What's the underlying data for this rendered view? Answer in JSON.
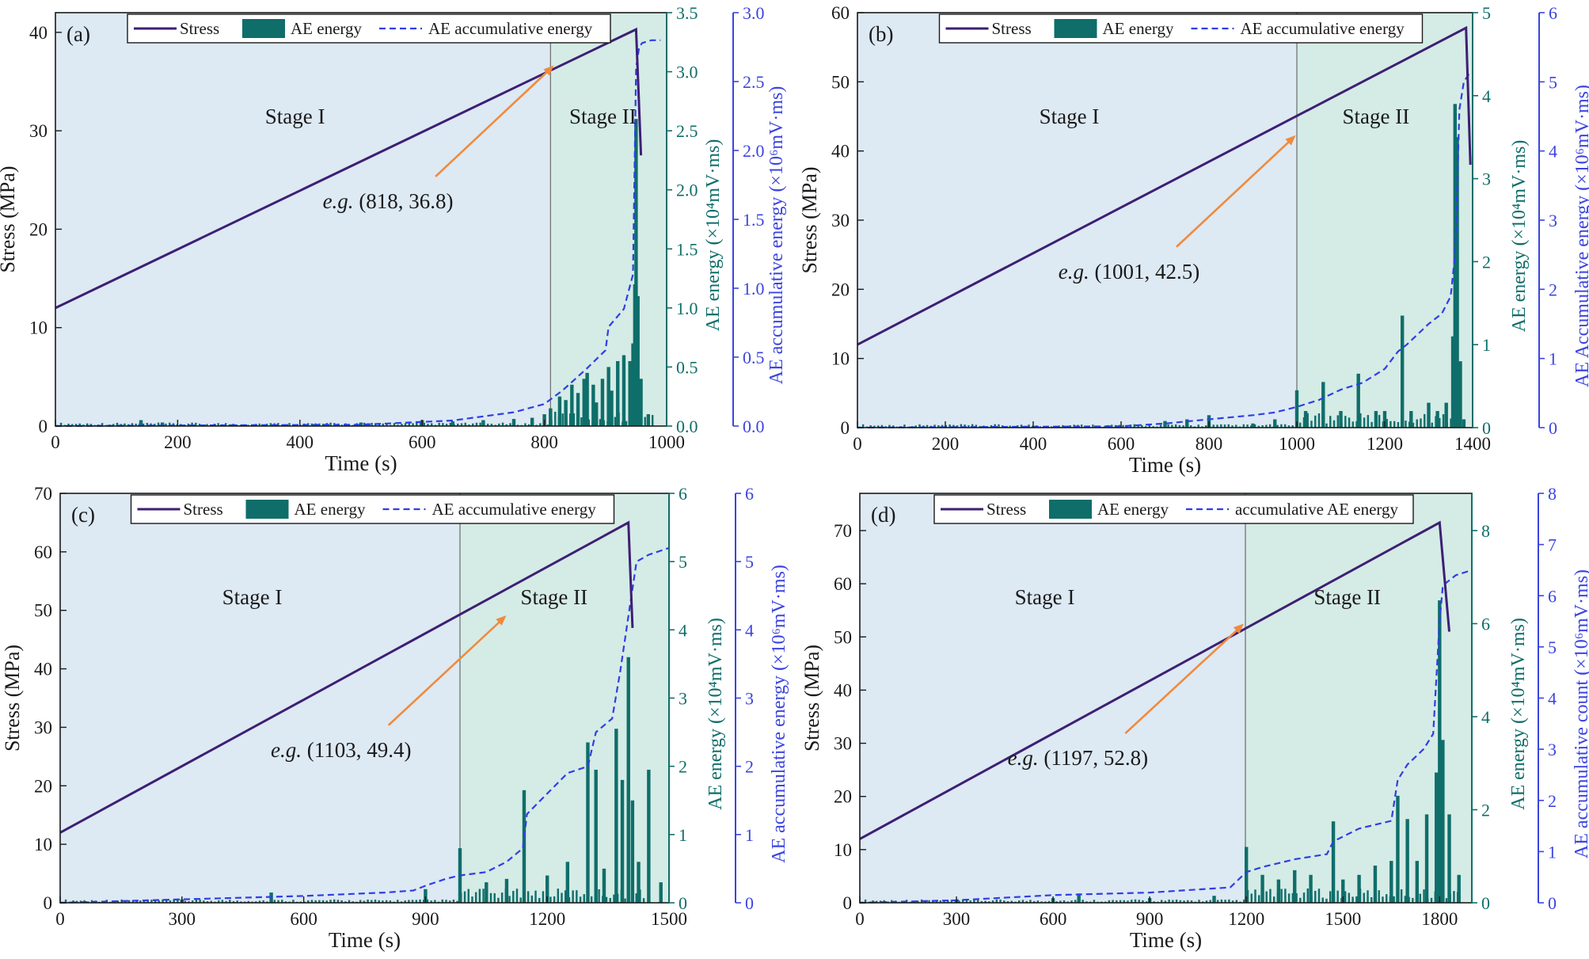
{
  "figure": {
    "colors": {
      "stress": "#3d1f73",
      "ae_energy": "#0f6e6a",
      "ae_accumulative": "#2f3ee6",
      "stage1_bg": "#dde9f3",
      "stage2_bg": "#d5ebe6",
      "annotation_arrow": "#f08a3c",
      "axis_stress": "#1a1a1a",
      "axis_energy": "#0f6e6a",
      "axis_accumulative": "#3b44e0"
    }
  },
  "chart_data": [
    {
      "type": "line",
      "panel_label": "(a)",
      "xlabel": "Time (s)",
      "ylabel_left": "Stress (MPa)",
      "ylabel_right1": "AE energy (×10⁴mV·ms)",
      "ylabel_right2": "AE accumulative energy (×10⁶mV·ms)",
      "xlim": [
        0,
        1000
      ],
      "ylim_left": [
        0,
        42
      ],
      "ylim_right1": [
        0,
        3.5
      ],
      "ylim_right2": [
        0,
        3.0
      ],
      "xticks": [
        0,
        200,
        400,
        600,
        800,
        1000
      ],
      "yticks_left": [
        0,
        10,
        20,
        30,
        40
      ],
      "yticks_right1": [
        0.0,
        0.5,
        1.0,
        1.5,
        2.0,
        2.5,
        3.0,
        3.5
      ],
      "yticks_right1_labels": [
        "0.0",
        "0.5",
        "1.0",
        "1.5",
        "2.0",
        "2.5",
        "3.0",
        "3.5"
      ],
      "yticks_right2": [
        0.0,
        0.5,
        1.0,
        1.5,
        2.0,
        2.5,
        3.0
      ],
      "yticks_right2_labels": [
        "0.0",
        "0.5",
        "1.0",
        "1.5",
        "2.0",
        "2.5",
        "3.0"
      ],
      "stage_boundary": 810,
      "stage_labels": [
        "Stage I",
        "Stage II"
      ],
      "legend": [
        "Stress",
        "AE energy",
        "AE accumulative energy"
      ],
      "stress": {
        "x": [
          0,
          950,
          958
        ],
        "y": [
          12,
          40.3,
          27.5
        ]
      },
      "annotation": {
        "italic": "e.g.",
        "text": " (818, 36.8)",
        "x": 818,
        "y": 36.8
      },
      "ae_accumulative": {
        "x": [
          0,
          500,
          650,
          750,
          800,
          830,
          870,
          900,
          905,
          930,
          945,
          950,
          955,
          960,
          975,
          990
        ],
        "y": [
          0,
          0.01,
          0.04,
          0.1,
          0.16,
          0.26,
          0.42,
          0.55,
          0.72,
          0.85,
          1.1,
          2.6,
          2.75,
          2.78,
          2.8,
          2.8
        ]
      },
      "ae_energy": {
        "x": [
          140,
          175,
          500,
          600,
          650,
          700,
          750,
          780,
          800,
          810,
          825,
          835,
          845,
          855,
          865,
          870,
          880,
          885,
          895,
          905,
          910,
          920,
          930,
          940,
          945,
          948,
          950,
          953,
          958,
          970
        ],
        "y": [
          0.05,
          0.03,
          0.03,
          0.05,
          0.04,
          0.05,
          0.06,
          0.07,
          0.1,
          0.15,
          0.25,
          0.22,
          0.35,
          0.28,
          0.4,
          0.45,
          0.35,
          0.2,
          0.4,
          0.5,
          0.3,
          0.55,
          0.6,
          0.55,
          0.7,
          1.2,
          2.6,
          1.1,
          0.4,
          0.1
        ]
      }
    },
    {
      "type": "line",
      "panel_label": "(b)",
      "xlabel": "Time (s)",
      "ylabel_left": "Stress (MPa)",
      "ylabel_right1": "AE energy (×10⁴mV·ms)",
      "ylabel_right2": "AE Accumulative energy (×10⁶mV·ms)",
      "xlim": [
        0,
        1400
      ],
      "ylim_left": [
        0,
        60
      ],
      "ylim_right1": [
        0,
        5
      ],
      "ylim_right2": [
        0,
        6
      ],
      "xticks": [
        0,
        200,
        400,
        600,
        800,
        1000,
        1200,
        1400
      ],
      "yticks_left": [
        0,
        10,
        20,
        30,
        40,
        50,
        60
      ],
      "yticks_right1": [
        0,
        1,
        2,
        3,
        4,
        5
      ],
      "yticks_right1_labels": [
        "0",
        "1",
        "2",
        "3",
        "4",
        "5"
      ],
      "yticks_right2": [
        0,
        1,
        2,
        3,
        4,
        5,
        6
      ],
      "yticks_right2_labels": [
        "0",
        "1",
        "2",
        "3",
        "4",
        "5",
        "6"
      ],
      "stage_boundary": 1000,
      "stage_labels": [
        "Stage I",
        "Stage II"
      ],
      "legend": [
        "Stress",
        "AE energy",
        "AE accumulative energy"
      ],
      "stress": {
        "x": [
          0,
          1385,
          1395
        ],
        "y": [
          12,
          57.8,
          38
        ]
      },
      "annotation": {
        "italic": "e.g.",
        "text": " (1001, 42.5)",
        "x": 1001,
        "y": 42.5
      },
      "ae_accumulative": {
        "x": [
          0,
          600,
          700,
          800,
          900,
          950,
          1000,
          1050,
          1100,
          1150,
          1200,
          1230,
          1250,
          1300,
          1330,
          1350,
          1360,
          1365,
          1370,
          1380,
          1390,
          1400
        ],
        "y": [
          0,
          0.02,
          0.06,
          0.12,
          0.18,
          0.22,
          0.3,
          0.4,
          0.55,
          0.65,
          0.85,
          1.1,
          1.2,
          1.5,
          1.65,
          1.9,
          2.5,
          3.5,
          4.6,
          5.0,
          5.1,
          5.1
        ]
      },
      "ae_energy": {
        "x": [
          700,
          750,
          800,
          900,
          950,
          1000,
          1020,
          1060,
          1100,
          1140,
          1180,
          1200,
          1240,
          1260,
          1300,
          1320,
          1340,
          1355,
          1360,
          1365,
          1372,
          1380
        ],
        "y": [
          0.08,
          0.1,
          0.15,
          0.05,
          0.1,
          0.45,
          0.2,
          0.55,
          0.2,
          0.65,
          0.2,
          0.2,
          1.35,
          0.2,
          0.3,
          0.2,
          0.3,
          1.1,
          3.9,
          3.5,
          0.8,
          0.1
        ]
      }
    },
    {
      "type": "line",
      "panel_label": "(c)",
      "xlabel": "Time (s)",
      "ylabel_left": "Stress (MPa)",
      "ylabel_right1": "AE energy (×10⁴mV·ms)",
      "ylabel_right2": "AE accumulative energy (×10⁶mV·ms)",
      "xlim": [
        0,
        1500
      ],
      "ylim_left": [
        0,
        70
      ],
      "ylim_right1": [
        0,
        6
      ],
      "ylim_right2": [
        0,
        6
      ],
      "xticks": [
        0,
        300,
        600,
        900,
        1200,
        1500
      ],
      "yticks_left": [
        0,
        10,
        20,
        30,
        40,
        50,
        60,
        70
      ],
      "yticks_right1": [
        0,
        1,
        2,
        3,
        4,
        5,
        6
      ],
      "yticks_right1_labels": [
        "0",
        "1",
        "2",
        "3",
        "4",
        "5",
        "6"
      ],
      "yticks_right2": [
        0,
        1,
        2,
        3,
        4,
        5,
        6
      ],
      "yticks_right2_labels": [
        "0",
        "1",
        "2",
        "3",
        "4",
        "5",
        "6"
      ],
      "stage_boundary": 985,
      "stage_labels": [
        "Stage I",
        "Stage II"
      ],
      "legend": [
        "Stress",
        "AE energy",
        "AE accumulative energy"
      ],
      "stress": {
        "x": [
          0,
          1400,
          1410
        ],
        "y": [
          12,
          65,
          47
        ]
      },
      "annotation": {
        "italic": "e.g.",
        "text": " (1103,  49.4)",
        "x": 1103,
        "y": 49.4
      },
      "ae_accumulative": {
        "x": [
          0,
          300,
          600,
          800,
          870,
          900,
          950,
          985,
          1050,
          1100,
          1140,
          1150,
          1200,
          1250,
          1300,
          1320,
          1360,
          1380,
          1400,
          1420,
          1450,
          1500
        ],
        "y": [
          0,
          0.05,
          0.1,
          0.15,
          0.18,
          0.25,
          0.35,
          0.4,
          0.45,
          0.6,
          0.8,
          1.3,
          1.6,
          1.9,
          2.0,
          2.5,
          2.7,
          3.4,
          4.2,
          5.0,
          5.1,
          5.2
        ]
      },
      "ae_energy": {
        "x": [
          300,
          520,
          900,
          985,
          1050,
          1100,
          1143,
          1200,
          1250,
          1300,
          1320,
          1340,
          1370,
          1385,
          1400,
          1410,
          1425,
          1450,
          1480
        ],
        "y": [
          0.05,
          0.15,
          0.2,
          0.8,
          0.3,
          0.35,
          1.65,
          0.4,
          0.6,
          2.35,
          1.95,
          0.5,
          2.55,
          1.8,
          3.6,
          1.5,
          0.6,
          1.95,
          0.3
        ]
      }
    },
    {
      "type": "line",
      "panel_label": "(d)",
      "xlabel": "Time (s)",
      "ylabel_left": "Stress (MPa)",
      "ylabel_right1": "AE energy (×10⁴mV·ms)",
      "ylabel_right2": "AE accumulative count (×10⁶mV·ms)",
      "xlim": [
        0,
        1900
      ],
      "ylim_left": [
        0,
        77
      ],
      "ylim_right1": [
        0,
        8.8
      ],
      "ylim_right2": [
        0,
        8
      ],
      "xticks": [
        0,
        300,
        600,
        900,
        1200,
        1500,
        1800
      ],
      "yticks_left": [
        0,
        10,
        20,
        30,
        40,
        50,
        60,
        70
      ],
      "yticks_right1": [
        0,
        2,
        4,
        6,
        8
      ],
      "yticks_right1_labels": [
        "0",
        "2",
        "4",
        "6",
        "8"
      ],
      "yticks_right2": [
        0,
        1,
        2,
        3,
        4,
        5,
        6,
        7,
        8
      ],
      "yticks_right2_labels": [
        "0",
        "1",
        "2",
        "3",
        "4",
        "5",
        "6",
        "7",
        "8"
      ],
      "stage_boundary": 1197,
      "stage_labels": [
        "Stage I",
        "Stage II"
      ],
      "legend": [
        "Stress",
        "AE energy",
        "accumulative AE energy"
      ],
      "stress": {
        "x": [
          0,
          1800,
          1830
        ],
        "y": [
          12,
          71.5,
          51
        ]
      },
      "annotation": {
        "italic": "e.g.",
        "text": " (1197,  52.8)",
        "x": 1197,
        "y": 52.8
      },
      "ae_accumulative": {
        "x": [
          0,
          300,
          600,
          900,
          1150,
          1200,
          1250,
          1350,
          1450,
          1470,
          1550,
          1650,
          1670,
          1700,
          1750,
          1780,
          1800,
          1810,
          1850,
          1900
        ],
        "y": [
          0,
          0.05,
          0.15,
          0.2,
          0.3,
          0.6,
          0.7,
          0.85,
          0.95,
          1.2,
          1.45,
          1.6,
          2.4,
          2.7,
          3.0,
          3.3,
          5.5,
          6.2,
          6.4,
          6.5
        ]
      },
      "ae_energy": {
        "x": [
          300,
          600,
          680,
          900,
          1100,
          1200,
          1250,
          1300,
          1350,
          1400,
          1470,
          1500,
          1550,
          1600,
          1650,
          1670,
          1700,
          1730,
          1760,
          1790,
          1800,
          1810,
          1830,
          1860
        ],
        "y": [
          0.05,
          0.1,
          0.2,
          0.1,
          0.15,
          1.2,
          0.6,
          0.5,
          0.7,
          0.6,
          1.75,
          0.5,
          0.6,
          0.8,
          0.9,
          2.3,
          1.8,
          0.9,
          1.9,
          2.8,
          6.5,
          3.5,
          1.9,
          0.6
        ]
      }
    }
  ]
}
